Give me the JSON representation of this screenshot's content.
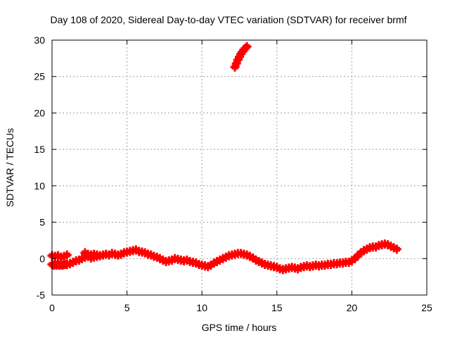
{
  "chart_data": {
    "type": "scatter",
    "title": "Day 108 of 2020, Sidereal Day-to-day VTEC variation (SDTVAR) for receiver brmf",
    "xlabel": "GPS time / hours",
    "ylabel": "SDTVAR / TECUs",
    "xlim": [
      0,
      25
    ],
    "ylim": [
      -5,
      30
    ],
    "xticks": [
      0,
      5,
      10,
      15,
      20,
      25
    ],
    "yticks": [
      -5,
      0,
      5,
      10,
      15,
      20,
      25,
      30
    ],
    "grid": true,
    "marker": "plus",
    "colors": {
      "series": "#ff0000",
      "grid": "#a0a0a0",
      "axes": "#000000"
    },
    "series": [
      {
        "name": "SDTVAR",
        "x": [
          0.0,
          0.1,
          0.2,
          0.3,
          0.4,
          0.5,
          0.6,
          0.7,
          0.8,
          0.9,
          1.0,
          0.0,
          0.2,
          0.4,
          0.6,
          0.8,
          1.0,
          1.2,
          1.4,
          1.6,
          1.8,
          2.0,
          2.2,
          2.4,
          2.6,
          2.8,
          3.0,
          2.2,
          2.4,
          2.6,
          2.8,
          3.0,
          3.2,
          3.4,
          3.6,
          3.8,
          4.0,
          4.2,
          4.4,
          4.6,
          4.8,
          5.0,
          5.2,
          5.4,
          5.6,
          5.8,
          6.0,
          6.2,
          6.4,
          6.6,
          6.8,
          7.0,
          7.2,
          7.4,
          7.6,
          7.8,
          8.0,
          8.2,
          8.4,
          8.6,
          8.8,
          9.0,
          9.2,
          9.4,
          9.6,
          9.8,
          10.0,
          10.2,
          10.4,
          10.6,
          10.8,
          11.0,
          11.2,
          11.4,
          11.6,
          11.8,
          12.0,
          12.2,
          12.4,
          12.6,
          12.8,
          13.0,
          13.2,
          13.4,
          13.6,
          13.8,
          14.0,
          14.2,
          14.4,
          14.6,
          14.8,
          15.0,
          15.2,
          15.4,
          15.6,
          15.8,
          16.0,
          16.2,
          16.4,
          16.6,
          16.8,
          17.0,
          17.2,
          17.4,
          17.6,
          17.8,
          18.0,
          18.2,
          18.4,
          18.6,
          18.8,
          19.0,
          19.2,
          19.4,
          19.6,
          19.8,
          20.0,
          20.2,
          20.4,
          20.6,
          20.8,
          21.0,
          21.2,
          21.4,
          21.6,
          21.8,
          22.0,
          22.2,
          22.4,
          22.6,
          22.8,
          23.0,
          12.2,
          12.3,
          12.4,
          12.5,
          12.6,
          12.7,
          12.8,
          12.9,
          13.0
        ],
        "y": [
          -0.8,
          -0.9,
          -0.8,
          -0.9,
          -0.8,
          -0.9,
          -0.8,
          -0.9,
          -0.8,
          -0.8,
          -0.8,
          0.4,
          0.3,
          0.4,
          0.2,
          0.3,
          0.5,
          -0.7,
          -0.5,
          -0.3,
          -0.2,
          0.0,
          0.2,
          0.3,
          0.1,
          0.2,
          0.3,
          0.8,
          0.6,
          0.5,
          0.6,
          0.5,
          0.4,
          0.5,
          0.6,
          0.5,
          0.7,
          0.6,
          0.5,
          0.6,
          0.8,
          0.9,
          1.0,
          1.1,
          1.2,
          1.0,
          0.9,
          0.8,
          0.6,
          0.5,
          0.3,
          0.2,
          0.0,
          -0.2,
          -0.4,
          -0.3,
          -0.2,
          0.0,
          -0.1,
          -0.2,
          -0.3,
          -0.2,
          -0.4,
          -0.5,
          -0.6,
          -0.8,
          -0.9,
          -1.0,
          -1.1,
          -0.9,
          -0.6,
          -0.4,
          -0.2,
          0.0,
          0.2,
          0.4,
          0.5,
          0.6,
          0.7,
          0.7,
          0.6,
          0.5,
          0.3,
          0.1,
          -0.2,
          -0.4,
          -0.6,
          -0.8,
          -0.9,
          -1.0,
          -1.1,
          -1.2,
          -1.4,
          -1.5,
          -1.4,
          -1.3,
          -1.2,
          -1.3,
          -1.4,
          -1.2,
          -1.1,
          -1.0,
          -1.1,
          -1.0,
          -0.9,
          -1.0,
          -0.9,
          -0.9,
          -0.8,
          -0.8,
          -0.7,
          -0.7,
          -0.6,
          -0.6,
          -0.5,
          -0.5,
          -0.3,
          0.0,
          0.4,
          0.8,
          1.1,
          1.3,
          1.5,
          1.6,
          1.6,
          1.8,
          1.9,
          2.0,
          1.9,
          1.7,
          1.5,
          1.3,
          26.3,
          26.8,
          27.3,
          27.7,
          28.1,
          28.4,
          28.7,
          28.9,
          29.1
        ]
      }
    ]
  }
}
